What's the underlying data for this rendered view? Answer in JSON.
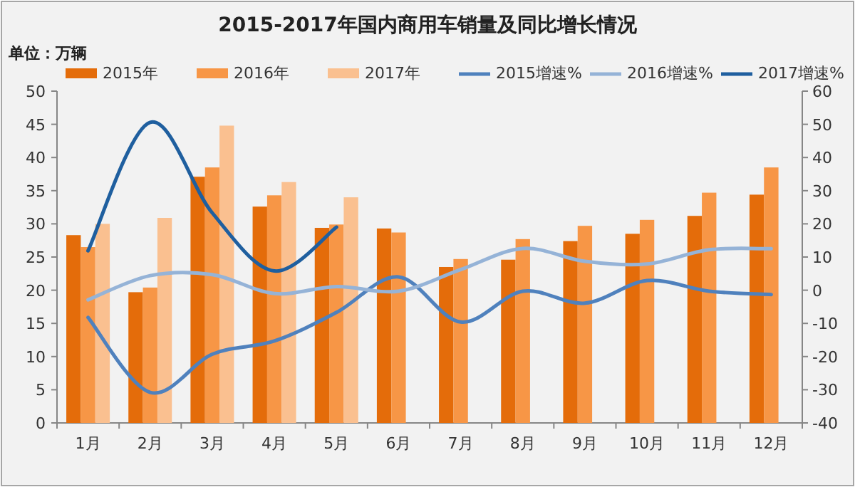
{
  "chart_data": {
    "type": "bar",
    "title": "2015-2017年国内商用车销量及同比增长情况",
    "annotations": [
      "单位：万辆"
    ],
    "categories": [
      "1月",
      "2月",
      "3月",
      "4月",
      "5月",
      "6月",
      "7月",
      "8月",
      "9月",
      "10月",
      "11月",
      "12月"
    ],
    "series": [
      {
        "name": "2015年",
        "color": "#e46c0a",
        "values": [
          28.3,
          19.7,
          37.1,
          32.6,
          29.4,
          29.3,
          23.5,
          24.6,
          27.4,
          28.5,
          31.2,
          34.4
        ]
      },
      {
        "name": "2016年",
        "color": "#f79646",
        "values": [
          26.5,
          20.4,
          38.5,
          34.3,
          29.9,
          28.7,
          24.7,
          27.7,
          29.7,
          30.6,
          34.7,
          38.5
        ]
      },
      {
        "name": "2017年",
        "color": "#fac090",
        "values": [
          30,
          30.9,
          44.8,
          36.3,
          34,
          null,
          null,
          null,
          null,
          null,
          null,
          null
        ]
      },
      {
        "name": "2015增速%",
        "type": "line",
        "axis": "y2",
        "color": "#4f81bd",
        "values": [
          -8.2,
          -30.8,
          -19.3,
          -15.3,
          -6.7,
          4,
          -9.6,
          -0.3,
          -3.9,
          2.9,
          -0.3,
          -1.3
        ]
      },
      {
        "name": "2016增速%",
        "type": "line",
        "axis": "y2",
        "color": "#95b3d7",
        "values": [
          -2.9,
          4.4,
          4.7,
          -1,
          1.1,
          -0.3,
          6.2,
          12.6,
          8.7,
          7.9,
          12.2,
          12.5
        ]
      },
      {
        "name": "2017增速%",
        "type": "line",
        "axis": "y2",
        "color": "#1f5f9f",
        "values": [
          11.9,
          50.6,
          23.3,
          5.8,
          19,
          null,
          null,
          null,
          null,
          null,
          null,
          null
        ]
      }
    ],
    "ylim": [
      0,
      50
    ],
    "yticks": [
      0,
      5,
      10,
      15,
      20,
      25,
      30,
      35,
      40,
      45,
      50
    ],
    "y2lim": [
      -40,
      60
    ],
    "y2ticks": [
      -40,
      -30,
      -20,
      -10,
      0,
      10,
      20,
      30,
      40,
      50,
      60
    ],
    "legend": "top"
  }
}
